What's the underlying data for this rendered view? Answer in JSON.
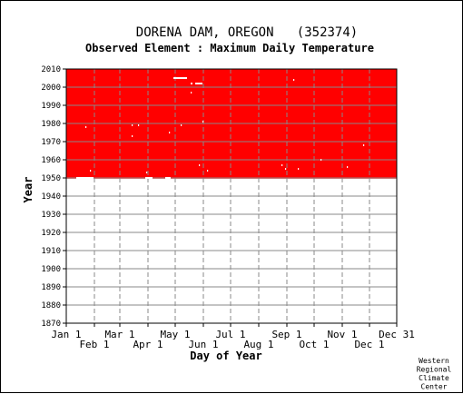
{
  "chart_data": {
    "type": "heatmap",
    "title": "DORENA DAM, OREGON   (352374)",
    "subtitle": "Observed Element : Maximum Daily Temperature",
    "xlabel": "Day of Year",
    "ylabel": "Year",
    "credit": [
      "Western",
      "Regional",
      "Climate",
      "Center"
    ],
    "x_ticks_upper": [
      "Jan 1",
      "Mar 1",
      "May 1",
      "Jul 1",
      "Sep 1",
      "Nov 1",
      "Dec 31"
    ],
    "x_ticks_lower": [
      "Feb 1",
      "Apr 1",
      "Jun 1",
      "Aug 1",
      "Oct 1",
      "Dec 1"
    ],
    "x_tick_days_upper": [
      1,
      60,
      121,
      182,
      244,
      305,
      365
    ],
    "x_tick_days_lower": [
      32,
      91,
      152,
      213,
      274,
      335
    ],
    "ylim": [
      1870,
      2010
    ],
    "y_ticks": [
      1870,
      1880,
      1890,
      1900,
      1910,
      1920,
      1930,
      1940,
      1950,
      1960,
      1970,
      1980,
      1990,
      2000,
      2010
    ],
    "grid": true,
    "fill_color": "#ff0000",
    "data_range": {
      "start_year": 1949.6,
      "end_year": 2010,
      "start_day": 1,
      "end_day": 365
    },
    "missing_days": [
      {
        "year": 2005,
        "day_start": 119,
        "day_end": 133
      },
      {
        "year": 2002,
        "day_start": 138,
        "day_end": 139
      },
      {
        "year": 2002,
        "day_start": 143,
        "day_end": 150
      },
      {
        "year": 2004,
        "day_start": 251,
        "day_end": 251
      },
      {
        "year": 1997,
        "day_start": 138,
        "day_end": 138
      },
      {
        "year": 1981,
        "day_start": 151,
        "day_end": 151
      },
      {
        "year": 1979,
        "day_start": 127,
        "day_end": 127
      },
      {
        "year": 1978,
        "day_start": 22,
        "day_end": 22
      },
      {
        "year": 1979,
        "day_start": 73,
        "day_end": 73
      },
      {
        "year": 1979,
        "day_start": 80,
        "day_end": 80
      },
      {
        "year": 1973,
        "day_start": 73,
        "day_end": 73
      },
      {
        "year": 1975,
        "day_start": 114,
        "day_end": 114
      },
      {
        "year": 1968,
        "day_start": 328,
        "day_end": 328
      },
      {
        "year": 1960,
        "day_start": 281,
        "day_end": 281
      },
      {
        "year": 1957,
        "day_start": 147,
        "day_end": 147
      },
      {
        "year": 1957,
        "day_start": 238,
        "day_end": 238
      },
      {
        "year": 1956,
        "day_start": 310,
        "day_end": 310
      },
      {
        "year": 1955,
        "day_start": 242,
        "day_end": 242
      },
      {
        "year": 1955,
        "day_start": 256,
        "day_end": 256
      },
      {
        "year": 1954,
        "day_start": 27,
        "day_end": 27
      },
      {
        "year": 1954,
        "day_start": 156,
        "day_end": 156
      },
      {
        "year": 1953,
        "day_start": 89,
        "day_end": 89
      },
      {
        "year": 1950,
        "day_start": 12,
        "day_end": 30
      },
      {
        "year": 1950,
        "day_start": 88,
        "day_end": 95
      },
      {
        "year": 1950,
        "day_start": 110,
        "day_end": 115
      }
    ]
  }
}
